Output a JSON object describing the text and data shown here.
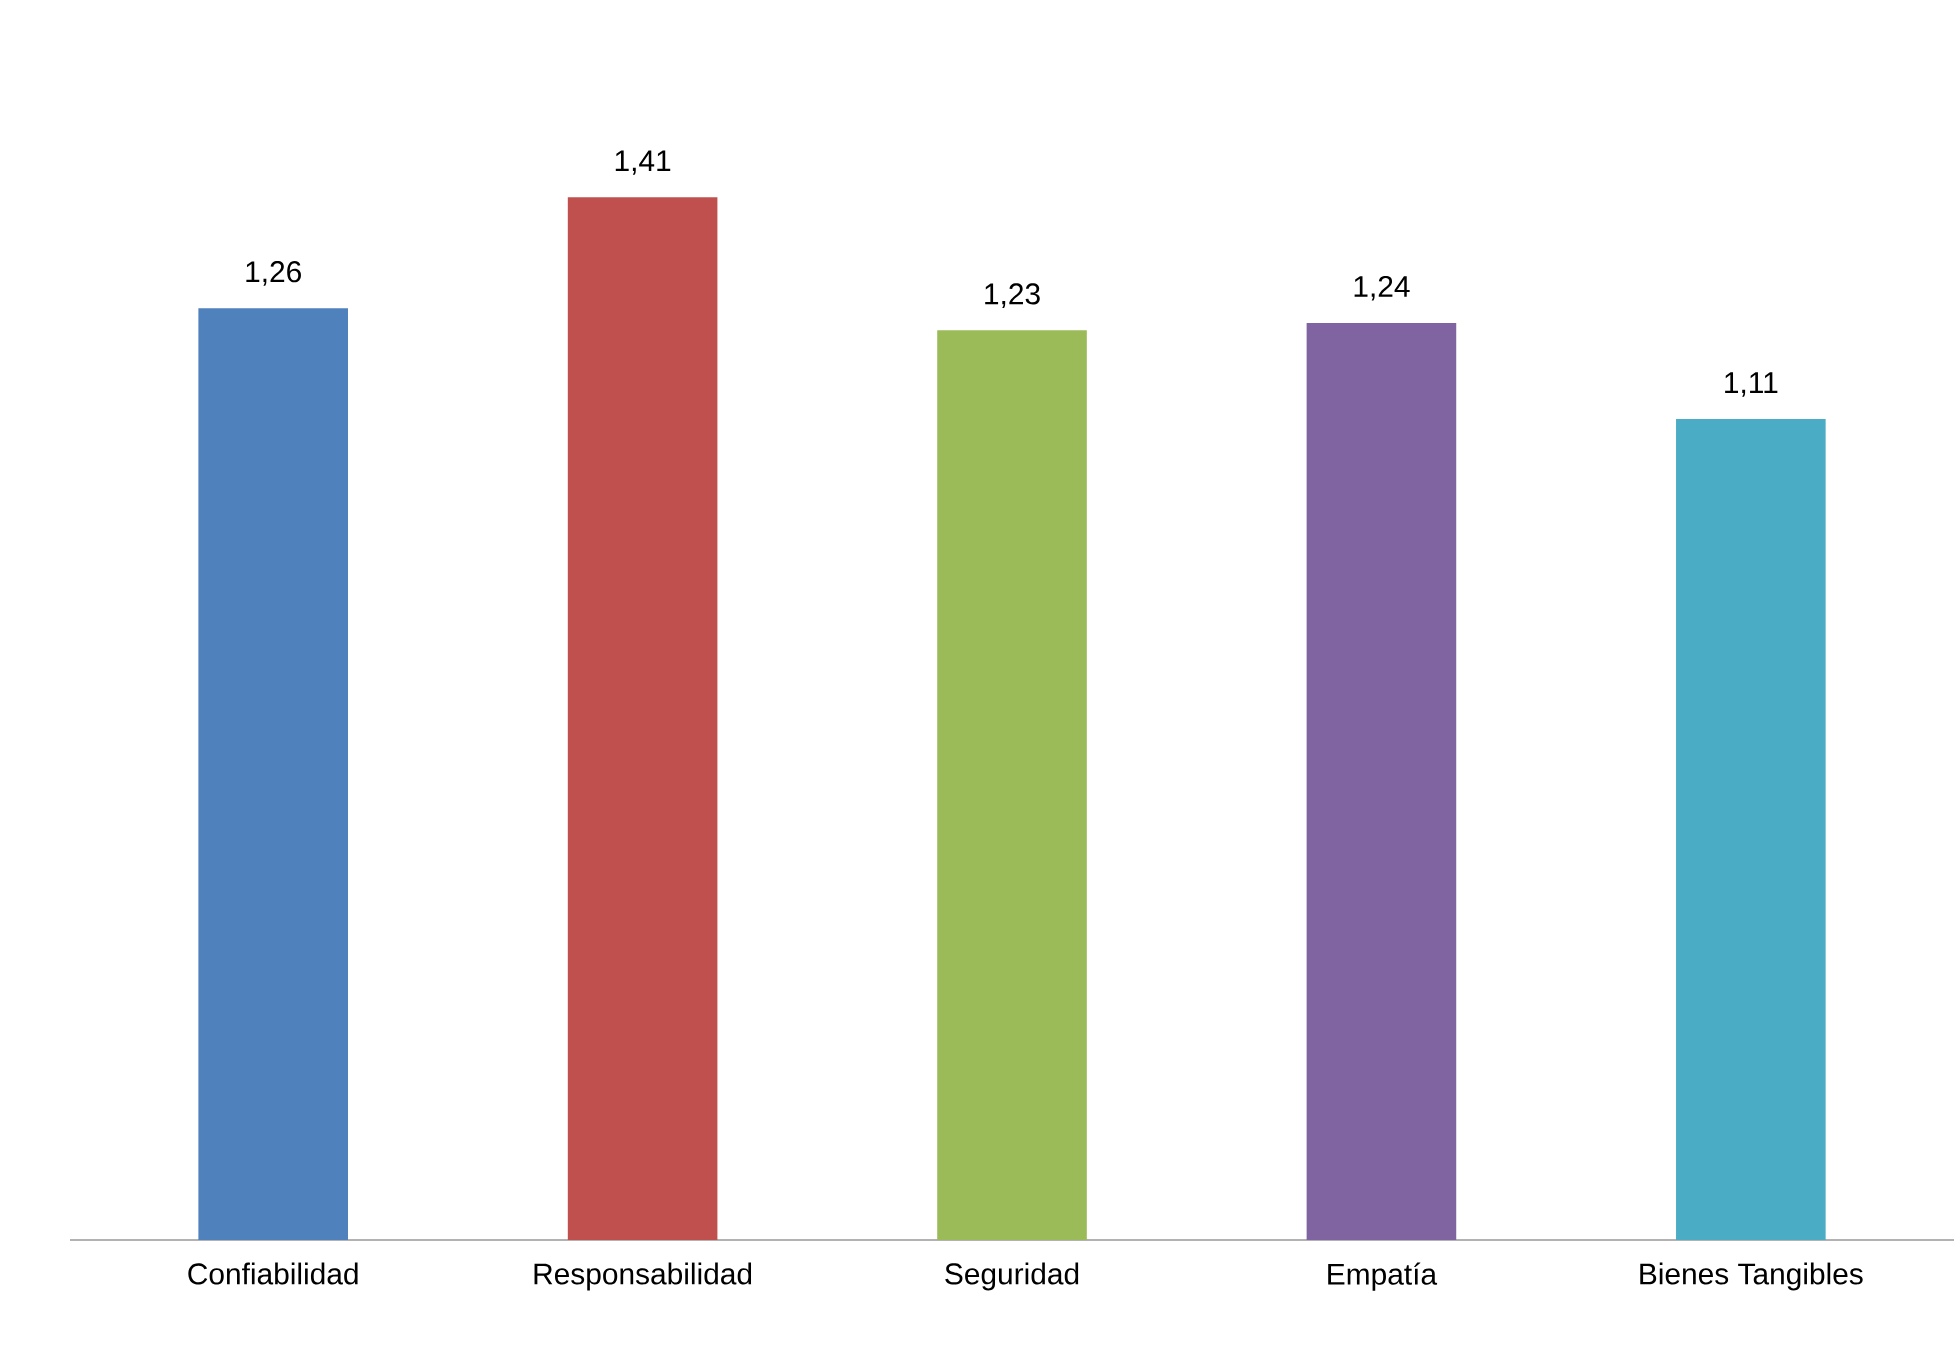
{
  "chart_data": {
    "type": "bar",
    "categories": [
      "Confiabilidad",
      "Responsabilidad",
      "Seguridad",
      "Empatía",
      "Bienes Tangibles"
    ],
    "values": [
      1.26,
      1.41,
      1.23,
      1.24,
      1.11
    ],
    "colors": [
      "#4f81bd",
      "#c0504d",
      "#9bbb59",
      "#8064a2",
      "#4bacc6"
    ],
    "value_labels": [
      "1,26",
      "1,41",
      "1,23",
      "1,24",
      "1,11"
    ]
  }
}
